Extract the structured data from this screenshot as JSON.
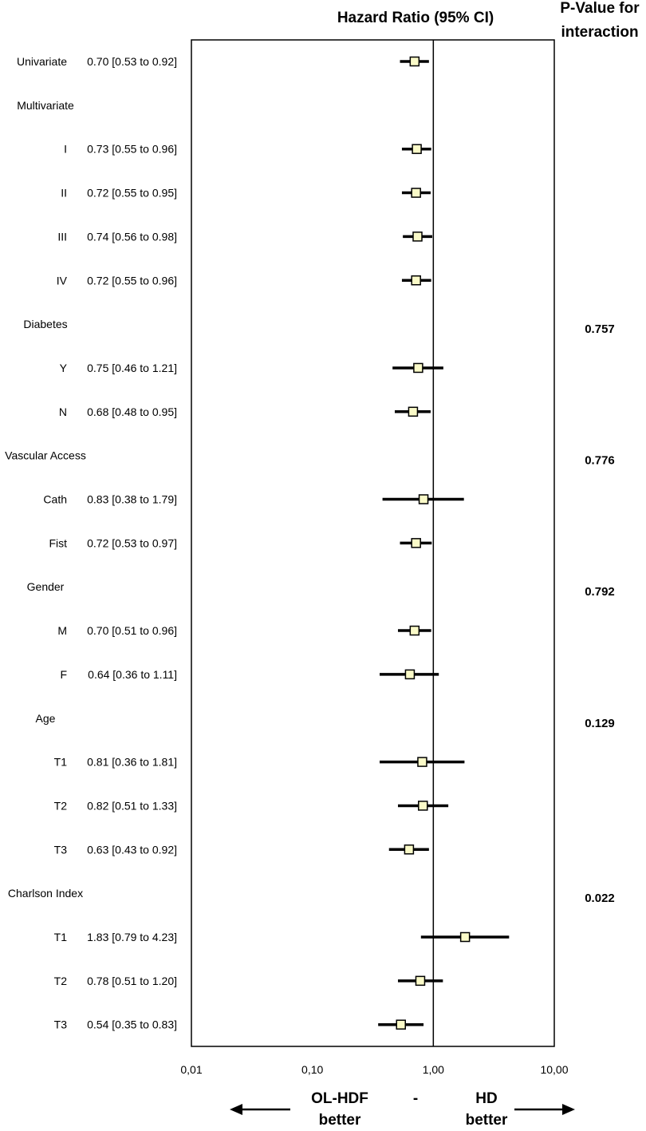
{
  "chart_data": {
    "type": "forest",
    "title": "Hazard Ratio (95% CI)",
    "pvalue_header": [
      "P-Value for",
      "interaction"
    ],
    "x_scale": "log",
    "xlim": [
      0.01,
      10
    ],
    "x_ticks": [
      0.01,
      0.1,
      1,
      10
    ],
    "x_tick_labels": [
      "0,01",
      "0,10",
      "1,00",
      "10,00"
    ],
    "reference_line": 1,
    "footer": {
      "left": [
        "OL-HDF",
        "better"
      ],
      "center": "-",
      "right": [
        "HD",
        "better"
      ]
    },
    "rows": [
      {
        "label": "Univariate",
        "indent": false,
        "hr": 0.7,
        "lo": 0.53,
        "hi": 0.92,
        "ci_text": "0.70 [0.53 to 0.92]"
      },
      {
        "label": "Multivariate",
        "header": true
      },
      {
        "label": "I",
        "indent": true,
        "hr": 0.73,
        "lo": 0.55,
        "hi": 0.96,
        "ci_text": "0.73 [0.55 to 0.96]"
      },
      {
        "label": "II",
        "indent": true,
        "hr": 0.72,
        "lo": 0.55,
        "hi": 0.95,
        "ci_text": "0.72 [0.55 to 0.95]"
      },
      {
        "label": "III",
        "indent": true,
        "hr": 0.74,
        "lo": 0.56,
        "hi": 0.98,
        "ci_text": "0.74 [0.56 to 0.98]"
      },
      {
        "label": "IV",
        "indent": true,
        "hr": 0.72,
        "lo": 0.55,
        "hi": 0.96,
        "ci_text": "0.72 [0.55 to 0.96]"
      },
      {
        "label": "Diabetes",
        "header": true
      },
      {
        "label": "Y",
        "indent": true,
        "hr": 0.75,
        "lo": 0.46,
        "hi": 1.21,
        "ci_text": "0.75 [0.46 to 1.21]"
      },
      {
        "label": "N",
        "indent": true,
        "hr": 0.68,
        "lo": 0.48,
        "hi": 0.95,
        "ci_text": "0.68 [0.48 to 0.95]"
      },
      {
        "label": "Vascular Access",
        "header": true
      },
      {
        "label": "Cath",
        "indent": true,
        "hr": 0.83,
        "lo": 0.38,
        "hi": 1.79,
        "ci_text": "0.83 [0.38 to 1.79]"
      },
      {
        "label": "Fist",
        "indent": true,
        "hr": 0.72,
        "lo": 0.53,
        "hi": 0.97,
        "ci_text": "0.72 [0.53 to 0.97]"
      },
      {
        "label": "Gender",
        "header": true
      },
      {
        "label": "M",
        "indent": true,
        "hr": 0.7,
        "lo": 0.51,
        "hi": 0.96,
        "ci_text": "0.70 [0.51 to 0.96]"
      },
      {
        "label": "F",
        "indent": true,
        "hr": 0.64,
        "lo": 0.36,
        "hi": 1.11,
        "ci_text": "0.64 [0.36 to 1.11]"
      },
      {
        "label": "Age",
        "header": true
      },
      {
        "label": "T1",
        "indent": true,
        "hr": 0.81,
        "lo": 0.36,
        "hi": 1.81,
        "ci_text": "0.81 [0.36 to 1.81]"
      },
      {
        "label": "T2",
        "indent": true,
        "hr": 0.82,
        "lo": 0.51,
        "hi": 1.33,
        "ci_text": "0.82 [0.51 to 1.33]"
      },
      {
        "label": "T3",
        "indent": true,
        "hr": 0.63,
        "lo": 0.43,
        "hi": 0.92,
        "ci_text": "0.63 [0.43 to 0.92]"
      },
      {
        "label": "Charlson Index",
        "header": true
      },
      {
        "label": "T1",
        "indent": true,
        "hr": 1.83,
        "lo": 0.79,
        "hi": 4.23,
        "ci_text": "1.83 [0.79 to 4.23]"
      },
      {
        "label": "T2",
        "indent": true,
        "hr": 0.78,
        "lo": 0.51,
        "hi": 1.2,
        "ci_text": "0.78 [0.51 to 1.20]"
      },
      {
        "label": "T3",
        "indent": true,
        "hr": 0.54,
        "lo": 0.35,
        "hi": 0.83,
        "ci_text": "0.54 [0.35 to 0.83]"
      }
    ],
    "interaction_pvalues": [
      {
        "group": "Diabetes",
        "value": "0.757"
      },
      {
        "group": "Vascular Access",
        "value": "0.776"
      },
      {
        "group": "Gender",
        "value": "0.792"
      },
      {
        "group": "Age",
        "value": "0.129"
      },
      {
        "group": "Charlson Index",
        "value": "0.022"
      }
    ],
    "colors": {
      "marker_fill": "#fafac8",
      "line": "#000000"
    }
  }
}
